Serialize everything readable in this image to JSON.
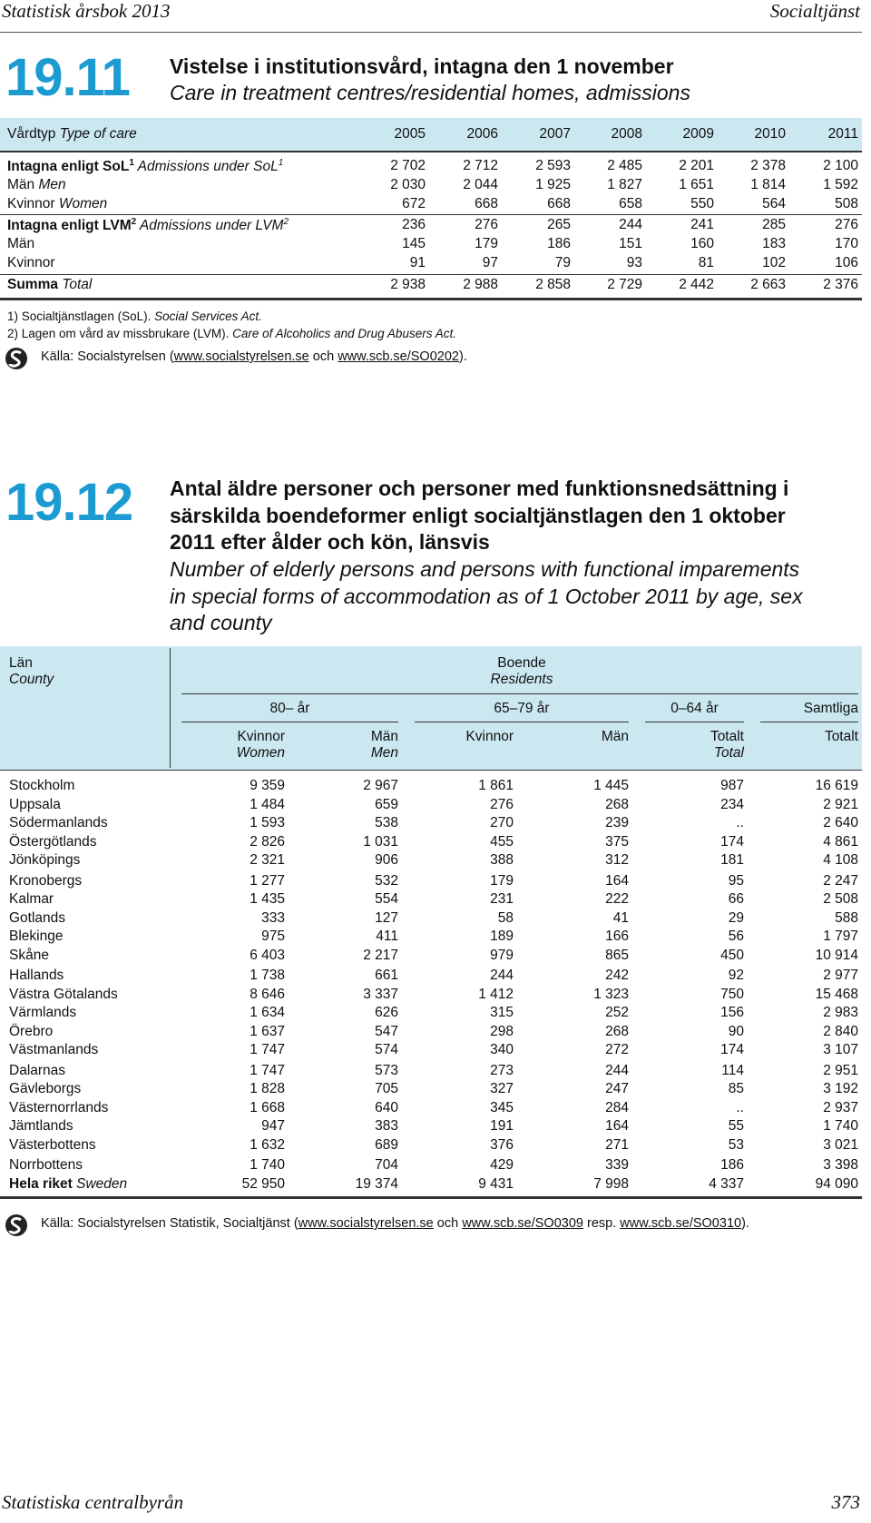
{
  "header": {
    "left": "Statistisk årsbok 2013",
    "right": "Socialtjänst"
  },
  "table1": {
    "number": "19.11",
    "title_sv": "Vistelse i institutionsvård, intagna den 1 november",
    "title_en": "Care in treatment centres/residential homes, admissions",
    "head_label": [
      {
        "text": "Vårdtyp ",
        "style": "n"
      },
      {
        "text": "Type of care",
        "style": "i"
      }
    ],
    "years": [
      "2005",
      "2006",
      "2007",
      "2008",
      "2009",
      "2010",
      "2011"
    ],
    "rows": [
      {
        "label": [
          {
            "text": "Intagna enligt SoL",
            "style": "b"
          },
          {
            "text": "1",
            "style": "bsup"
          },
          {
            "text": " Admissions under SoL",
            "style": "i"
          },
          {
            "text": "1",
            "style": "isup"
          }
        ],
        "values": [
          "2 702",
          "2 712",
          "2 593",
          "2 485",
          "2 201",
          "2 378",
          "2 100"
        ]
      },
      {
        "label": [
          {
            "text": "Män ",
            "style": "n"
          },
          {
            "text": "Men",
            "style": "i"
          }
        ],
        "values": [
          "2 030",
          "2 044",
          "1 925",
          "1 827",
          "1 651",
          "1 814",
          "1 592"
        ]
      },
      {
        "label": [
          {
            "text": "Kvinnor ",
            "style": "n"
          },
          {
            "text": "Women",
            "style": "i"
          }
        ],
        "values": [
          "672",
          "668",
          "668",
          "658",
          "550",
          "564",
          "508"
        ]
      },
      {
        "label": [
          {
            "text": "Intagna enligt LVM",
            "style": "b"
          },
          {
            "text": "2",
            "style": "bsup"
          },
          {
            "text": " Admissions under LVM",
            "style": "i"
          },
          {
            "text": "2",
            "style": "isup"
          }
        ],
        "values": [
          "236",
          "276",
          "265",
          "244",
          "241",
          "285",
          "276"
        ]
      },
      {
        "label": [
          {
            "text": "Män",
            "style": "n"
          }
        ],
        "values": [
          "145",
          "179",
          "186",
          "151",
          "160",
          "183",
          "170"
        ]
      },
      {
        "label": [
          {
            "text": "Kvinnor",
            "style": "n"
          }
        ],
        "values": [
          "91",
          "97",
          "79",
          "93",
          "81",
          "102",
          "106"
        ]
      },
      {
        "label": [
          {
            "text": "Summa ",
            "style": "b"
          },
          {
            "text": "Total",
            "style": "i"
          }
        ],
        "values": [
          "2 938",
          "2 988",
          "2 858",
          "2 729",
          "2 442",
          "2 663",
          "2 376"
        ]
      }
    ],
    "footnotes": [
      [
        {
          "text": "1) Socialtjänstlagen (SoL). ",
          "style": "n"
        },
        {
          "text": "Social Services Act.",
          "style": "i"
        }
      ],
      [
        {
          "text": "2) Lagen om vård av missbrukare (LVM). ",
          "style": "n"
        },
        {
          "text": "Care of Alcoholics and Drug Abusers Act.",
          "style": "i"
        }
      ]
    ],
    "source": [
      {
        "text": "Källa: Socialstyrelsen (",
        "style": "n"
      },
      {
        "text": "www.socialstyrelsen.se",
        "style": "u"
      },
      {
        "text": " och ",
        "style": "n"
      },
      {
        "text": "www.scb.se/SO0202",
        "style": "u"
      },
      {
        "text": ").",
        "style": "n"
      }
    ]
  },
  "table2": {
    "number": "19.12",
    "title_sv": [
      "Antal äldre personer och personer med funktionsnedsättning i",
      "särskilda boendeformer enligt socialtjänstlagen den 1 oktober",
      "2011 efter ålder och kön, länsvis"
    ],
    "title_en": [
      "Number of elderly persons and persons with functional imparements",
      "in special forms of accommodation as of 1 October 2011 by age, sex",
      "and county"
    ],
    "head": {
      "county_sv": "Län",
      "county_en": "County",
      "residents_sv": "Boende",
      "residents_en": "Residents",
      "groups": [
        "80– år",
        "65–79 år",
        "0–64 år",
        "Samtliga"
      ],
      "columns": [
        {
          "sv": "Kvinnor",
          "en": "Women"
        },
        {
          "sv": "Män",
          "en": "Men"
        },
        {
          "sv": "Kvinnor"
        },
        {
          "sv": "Män"
        },
        {
          "sv": "Totalt",
          "en": "Total"
        },
        {
          "sv": "Totalt"
        }
      ]
    },
    "rows": [
      {
        "label": [
          {
            "text": "Stockholm",
            "style": "n"
          }
        ],
        "values": [
          "9 359",
          "2 967",
          "1 861",
          "1 445",
          "987",
          "16 619"
        ]
      },
      {
        "label": [
          {
            "text": "Uppsala",
            "style": "n"
          }
        ],
        "values": [
          "1 484",
          "659",
          "276",
          "268",
          "234",
          "2 921"
        ]
      },
      {
        "label": [
          {
            "text": "Södermanlands",
            "style": "n"
          }
        ],
        "values": [
          "1 593",
          "538",
          "270",
          "239",
          "..",
          "2 640"
        ]
      },
      {
        "label": [
          {
            "text": "Östergötlands",
            "style": "n"
          }
        ],
        "values": [
          "2 826",
          "1 031",
          "455",
          "375",
          "174",
          "4 861"
        ]
      },
      {
        "label": [
          {
            "text": "Jönköpings",
            "style": "n"
          }
        ],
        "values": [
          "2 321",
          "906",
          "388",
          "312",
          "181",
          "4 108"
        ]
      },
      {
        "label": [
          {
            "text": "Kronobergs",
            "style": "n"
          }
        ],
        "values": [
          "1 277",
          "532",
          "179",
          "164",
          "95",
          "2 247"
        ]
      },
      {
        "label": [
          {
            "text": "Kalmar",
            "style": "n"
          }
        ],
        "values": [
          "1 435",
          "554",
          "231",
          "222",
          "66",
          "2 508"
        ]
      },
      {
        "label": [
          {
            "text": "Gotlands",
            "style": "n"
          }
        ],
        "values": [
          "333",
          "127",
          "58",
          "41",
          "29",
          "588"
        ]
      },
      {
        "label": [
          {
            "text": "Blekinge",
            "style": "n"
          }
        ],
        "values": [
          "975",
          "411",
          "189",
          "166",
          "56",
          "1 797"
        ]
      },
      {
        "label": [
          {
            "text": "Skåne",
            "style": "n"
          }
        ],
        "values": [
          "6 403",
          "2 217",
          "979",
          "865",
          "450",
          "10 914"
        ]
      },
      {
        "label": [
          {
            "text": "Hallands",
            "style": "n"
          }
        ],
        "values": [
          "1 738",
          "661",
          "244",
          "242",
          "92",
          "2 977"
        ]
      },
      {
        "label": [
          {
            "text": "Västra Götalands",
            "style": "n"
          }
        ],
        "values": [
          "8 646",
          "3 337",
          "1 412",
          "1 323",
          "750",
          "15 468"
        ]
      },
      {
        "label": [
          {
            "text": "Värmlands",
            "style": "n"
          }
        ],
        "values": [
          "1 634",
          "626",
          "315",
          "252",
          "156",
          "2 983"
        ]
      },
      {
        "label": [
          {
            "text": "Örebro",
            "style": "n"
          }
        ],
        "values": [
          "1 637",
          "547",
          "298",
          "268",
          "90",
          "2 840"
        ]
      },
      {
        "label": [
          {
            "text": "Västmanlands",
            "style": "n"
          }
        ],
        "values": [
          "1 747",
          "574",
          "340",
          "272",
          "174",
          "3 107"
        ]
      },
      {
        "label": [
          {
            "text": "Dalarnas",
            "style": "n"
          }
        ],
        "values": [
          "1 747",
          "573",
          "273",
          "244",
          "114",
          "2 951"
        ]
      },
      {
        "label": [
          {
            "text": "Gävleborgs",
            "style": "n"
          }
        ],
        "values": [
          "1 828",
          "705",
          "327",
          "247",
          "85",
          "3 192"
        ]
      },
      {
        "label": [
          {
            "text": "Västernorrlands",
            "style": "n"
          }
        ],
        "values": [
          "1 668",
          "640",
          "345",
          "284",
          "..",
          "2 937"
        ]
      },
      {
        "label": [
          {
            "text": "Jämtlands",
            "style": "n"
          }
        ],
        "values": [
          "947",
          "383",
          "191",
          "164",
          "55",
          "1 740"
        ]
      },
      {
        "label": [
          {
            "text": "Västerbottens",
            "style": "n"
          }
        ],
        "values": [
          "1 632",
          "689",
          "376",
          "271",
          "53",
          "3 021"
        ]
      },
      {
        "label": [
          {
            "text": "Norrbottens",
            "style": "n"
          }
        ],
        "values": [
          "1 740",
          "704",
          "429",
          "339",
          "186",
          "3 398"
        ]
      },
      {
        "label": [
          {
            "text": "Hela riket ",
            "style": "b"
          },
          {
            "text": "Sweden",
            "style": "i"
          }
        ],
        "values": [
          "52 950",
          "19 374",
          "9 431",
          "7 998",
          "4 337",
          "94 090"
        ]
      }
    ],
    "source": [
      {
        "text": "Källa: Socialstyrelsen Statistik, Socialtjänst (",
        "style": "n"
      },
      {
        "text": "www.socialstyrelsen.se",
        "style": "u"
      },
      {
        "text": " och ",
        "style": "n"
      },
      {
        "text": "www.scb.se/SO0309",
        "style": "u"
      },
      {
        "text": " resp. ",
        "style": "n"
      },
      {
        "text": "www.scb.se/SO0310",
        "style": "u"
      },
      {
        "text": ").",
        "style": "n"
      }
    ]
  },
  "footer": {
    "left": "Statistiska centralbyrån",
    "right": "373"
  }
}
